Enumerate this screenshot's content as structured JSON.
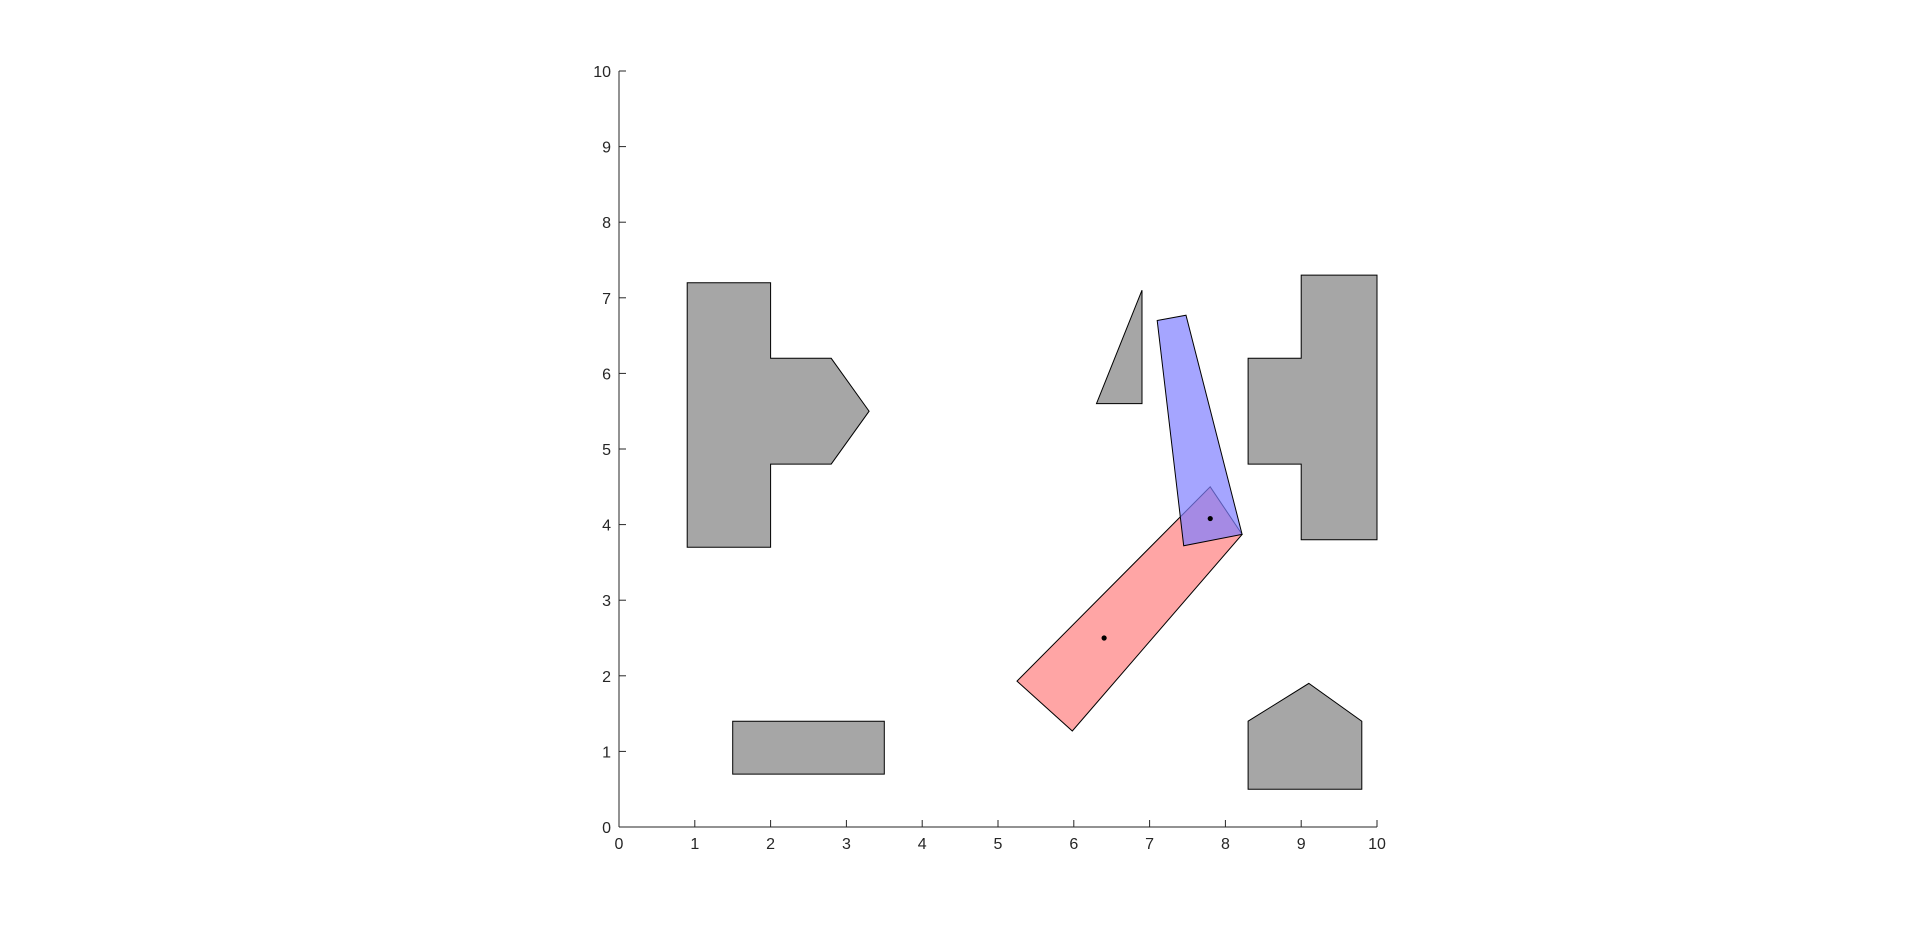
{
  "chart_data": {
    "type": "scatter",
    "title": "",
    "xlabel": "",
    "ylabel": "",
    "xlim": [
      0,
      10
    ],
    "ylim": [
      0,
      10
    ],
    "grid": false,
    "xticks": [
      "0",
      "1",
      "2",
      "3",
      "4",
      "5",
      "6",
      "7",
      "8",
      "9",
      "10"
    ],
    "yticks": [
      "0",
      "1",
      "2",
      "3",
      "4",
      "5",
      "6",
      "7",
      "8",
      "9",
      "10"
    ],
    "obstacle_color": "#a6a6a6",
    "obstacles": [
      [
        [
          0.9,
          3.7
        ],
        [
          0.9,
          7.2
        ],
        [
          2.0,
          7.2
        ],
        [
          2.0,
          6.2
        ],
        [
          2.8,
          6.2
        ],
        [
          3.3,
          5.5
        ],
        [
          2.8,
          4.8
        ],
        [
          2.0,
          4.8
        ],
        [
          2.0,
          3.7
        ]
      ],
      [
        [
          1.5,
          0.7
        ],
        [
          1.5,
          1.4
        ],
        [
          3.5,
          1.4
        ],
        [
          3.5,
          0.7
        ]
      ],
      [
        [
          6.3,
          5.6
        ],
        [
          6.9,
          7.1
        ],
        [
          6.9,
          5.6
        ]
      ],
      [
        [
          8.3,
          4.8
        ],
        [
          8.3,
          6.2
        ],
        [
          9.0,
          6.2
        ],
        [
          9.0,
          7.3
        ],
        [
          10.0,
          7.3
        ],
        [
          10.0,
          3.8
        ],
        [
          9.0,
          3.8
        ],
        [
          9.0,
          4.8
        ]
      ],
      [
        [
          8.3,
          0.5
        ],
        [
          8.3,
          1.4
        ],
        [
          9.1,
          1.9
        ],
        [
          9.8,
          1.4
        ],
        [
          9.8,
          0.5
        ]
      ]
    ],
    "links": [
      {
        "color": "#ff7f7f",
        "points": [
          [
            5.25,
            1.93
          ],
          [
            5.98,
            1.27
          ],
          [
            8.22,
            3.87
          ],
          [
            7.8,
            4.5
          ]
        ]
      },
      {
        "color": "#7f7fff",
        "points": [
          [
            7.1,
            6.7
          ],
          [
            7.48,
            6.77
          ],
          [
            8.22,
            3.87
          ],
          [
            7.45,
            3.72
          ]
        ]
      }
    ],
    "points": [
      [
        6.4,
        2.5
      ],
      [
        7.8,
        4.08
      ]
    ]
  }
}
